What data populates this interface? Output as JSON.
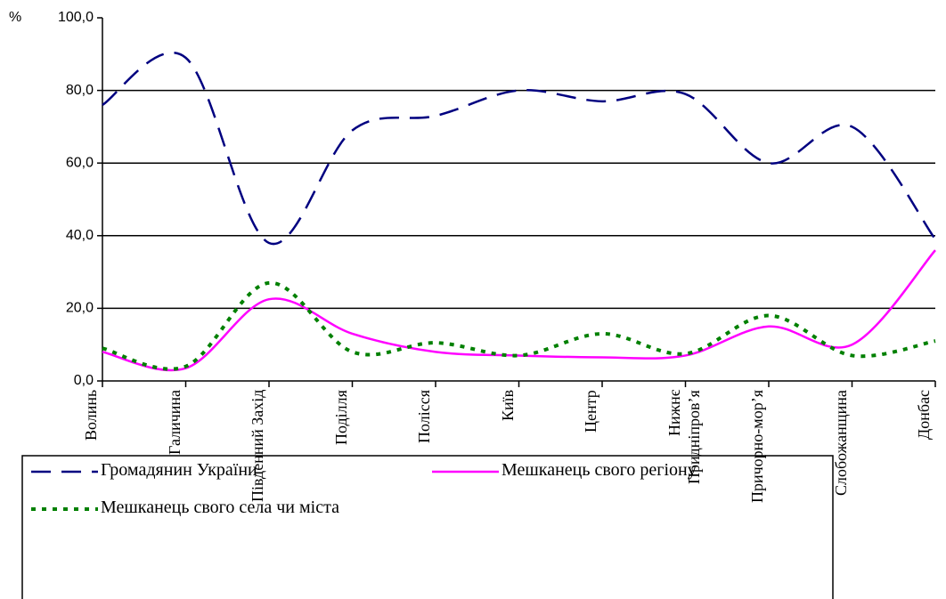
{
  "chart_data": {
    "type": "line",
    "y_unit": "%",
    "categories": [
      "Волинь",
      "Галичина",
      "Південний Захід",
      "Поділля",
      "Полісся",
      "Київ",
      "Центр",
      "Нижнє Придніпров’я",
      "Причорно-мор’я",
      "Слобожанщина",
      "Донбас"
    ],
    "series": [
      {
        "name": "Громадянин України",
        "color": "#000080",
        "style": "dashed",
        "values": [
          76,
          89,
          38,
          69,
          73,
          80,
          77,
          79,
          60,
          70,
          39
        ]
      },
      {
        "name": "Мешканець свого регіону",
        "color": "#ff00ff",
        "style": "solid",
        "values": [
          8,
          3.5,
          22.5,
          13,
          8,
          7,
          6.5,
          7,
          15,
          10,
          36
        ]
      },
      {
        "name": "Мешканець свого села чи міста",
        "color": "#008000",
        "style": "dotted",
        "values": [
          9,
          4,
          27,
          8,
          10.5,
          7,
          13,
          7.5,
          18,
          7,
          11
        ]
      }
    ],
    "ylim": [
      0,
      100
    ],
    "yticks": [
      {
        "value": 0,
        "label": "0,0"
      },
      {
        "value": 20,
        "label": "20,0"
      },
      {
        "value": 40,
        "label": "40,0"
      },
      {
        "value": 60,
        "label": "60,0"
      },
      {
        "value": 80,
        "label": "80,0"
      },
      {
        "value": 100,
        "label": "100,0"
      }
    ],
    "grid": true
  }
}
